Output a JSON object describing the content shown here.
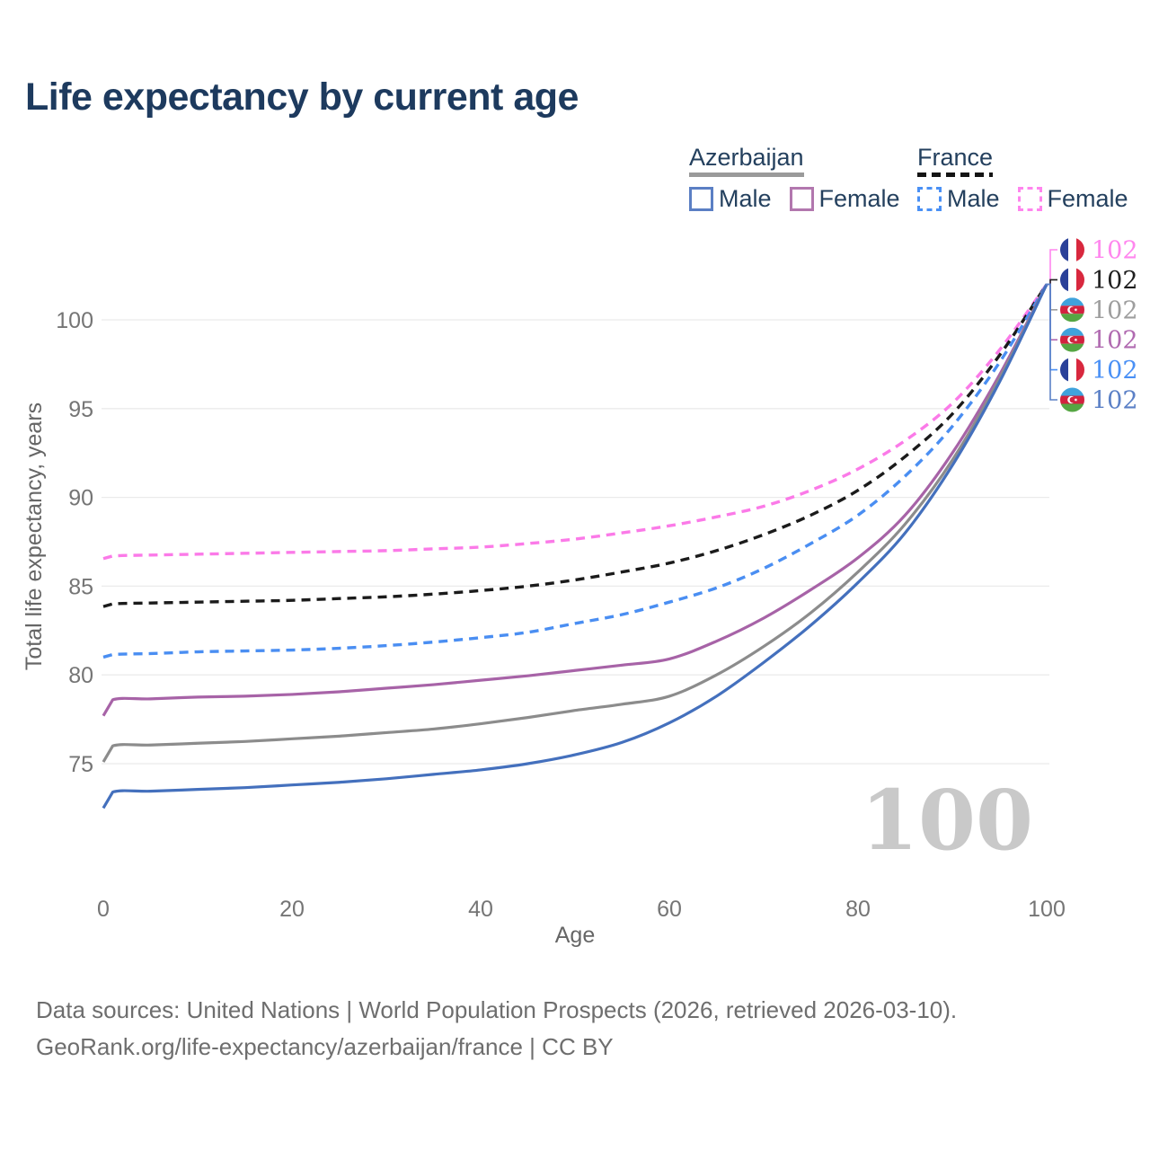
{
  "title": "Life expectancy by current age",
  "legend": {
    "groups": [
      {
        "name": "Azerbaijan",
        "underline_style": "solid",
        "underline_color": "#9a9a9a",
        "items": [
          {
            "label": "Male",
            "color": "#5b7fc4",
            "dash": false
          },
          {
            "label": "Female",
            "color": "#b277ae",
            "dash": false
          }
        ]
      },
      {
        "name": "France",
        "underline_style": "dashed",
        "underline_color": "#141414",
        "items": [
          {
            "label": "Male",
            "color": "#4a90f5",
            "dash": true
          },
          {
            "label": "Female",
            "color": "#ff85ee",
            "dash": true
          }
        ]
      }
    ]
  },
  "chart_data": {
    "type": "line",
    "title": "Life expectancy by current age",
    "xlabel": "Age",
    "ylabel": "Total life expectancy, years",
    "xlim": [
      0,
      100
    ],
    "ylim": [
      70,
      104.5
    ],
    "xticks": [
      0,
      20,
      40,
      60,
      80,
      100
    ],
    "yticks": [
      75,
      80,
      85,
      90,
      95,
      100
    ],
    "grid": "horizontal-only",
    "legend_position": "top-right",
    "x_values": [
      0,
      1,
      5,
      10,
      15,
      20,
      25,
      30,
      35,
      40,
      45,
      50,
      55,
      60,
      65,
      70,
      75,
      80,
      85,
      90,
      95,
      100
    ],
    "series": [
      {
        "name": "France Female",
        "country": "France",
        "sex": "Female",
        "style": "dashed",
        "color": "#fb7ae8",
        "values": [
          86.55,
          86.7,
          86.75,
          86.8,
          86.85,
          86.9,
          86.95,
          87.0,
          87.1,
          87.2,
          87.4,
          87.65,
          88.0,
          88.4,
          88.9,
          89.5,
          90.4,
          91.6,
          93.2,
          95.3,
          98.3,
          102
        ]
      },
      {
        "name": "France (both sexes)",
        "country": "France",
        "sex": "Both",
        "style": "dashed",
        "color": "#1b1b1b",
        "values": [
          83.85,
          84.0,
          84.05,
          84.1,
          84.15,
          84.2,
          84.3,
          84.4,
          84.55,
          84.75,
          85.0,
          85.35,
          85.8,
          86.3,
          87.0,
          87.9,
          89.0,
          90.4,
          92.3,
          94.7,
          98.0,
          102
        ]
      },
      {
        "name": "France Male",
        "country": "France",
        "sex": "Male",
        "style": "dashed",
        "color": "#4a8ef2",
        "values": [
          81.0,
          81.15,
          81.2,
          81.3,
          81.35,
          81.4,
          81.5,
          81.65,
          81.85,
          82.1,
          82.4,
          82.9,
          83.4,
          84.1,
          84.9,
          86.0,
          87.4,
          89.0,
          91.2,
          94.0,
          97.6,
          102
        ]
      },
      {
        "name": "Azerbaijan Female",
        "country": "Azerbaijan",
        "sex": "Female",
        "style": "solid",
        "color": "#a763a7",
        "values": [
          77.7,
          78.6,
          78.65,
          78.75,
          78.8,
          78.9,
          79.05,
          79.25,
          79.45,
          79.7,
          79.95,
          80.25,
          80.55,
          80.9,
          81.9,
          83.2,
          84.8,
          86.6,
          89.0,
          92.5,
          96.9,
          102
        ]
      },
      {
        "name": "Azerbaijan (both sexes)",
        "country": "Azerbaijan",
        "sex": "Both",
        "style": "solid",
        "color": "#8c8c8c",
        "values": [
          75.1,
          76.0,
          76.05,
          76.15,
          76.25,
          76.4,
          76.55,
          76.75,
          76.95,
          77.25,
          77.6,
          78.0,
          78.35,
          78.8,
          80.0,
          81.6,
          83.5,
          85.8,
          88.5,
          92.1,
          96.7,
          102
        ]
      },
      {
        "name": "Azerbaijan Male",
        "country": "Azerbaijan",
        "sex": "Male",
        "style": "solid",
        "color": "#4470bd",
        "values": [
          72.5,
          73.4,
          73.45,
          73.55,
          73.65,
          73.8,
          73.95,
          74.15,
          74.4,
          74.65,
          75.0,
          75.5,
          76.2,
          77.3,
          78.8,
          80.7,
          82.8,
          85.2,
          88.0,
          91.8,
          96.5,
          102
        ]
      }
    ]
  },
  "end_labels": [
    {
      "series": "France Female",
      "flag": "france",
      "value": "102",
      "color": "#ff86ee"
    },
    {
      "series": "France (both sexes)",
      "flag": "france",
      "value": "102",
      "color": "#1f1f1f"
    },
    {
      "series": "Azerbaijan (both sexes)",
      "flag": "azerbaijan",
      "value": "102",
      "color": "#9e9e9e"
    },
    {
      "series": "Azerbaijan Female",
      "flag": "azerbaijan",
      "value": "102",
      "color": "#b06ab0"
    },
    {
      "series": "France Male",
      "flag": "france",
      "value": "102",
      "color": "#4a90f5"
    },
    {
      "series": "Azerbaijan Male",
      "flag": "azerbaijan",
      "value": "102",
      "color": "#5b80c6"
    }
  ],
  "frame_counter": "100",
  "footer": {
    "line1": "Data sources: United Nations | World Population Prospects (2026, retrieved 2026-03-10).",
    "line2": "GeoRank.org/life-expectancy/azerbaijan/france | CC BY"
  },
  "colors": {
    "title_text": "#1d3a5e",
    "legend_text": "#24405e",
    "axis_tick_text": "#757575",
    "axis_title_text": "#666666",
    "gridline": "#ebebeb",
    "frame_counter": "#c9c9c9",
    "footer_text": "#6e6e6e",
    "france_flag": [
      "#2a4199",
      "#ffffff",
      "#d8283e"
    ],
    "azerbaijan_flag": [
      "#3fa2dc",
      "#d2223f",
      "#55a643"
    ]
  }
}
